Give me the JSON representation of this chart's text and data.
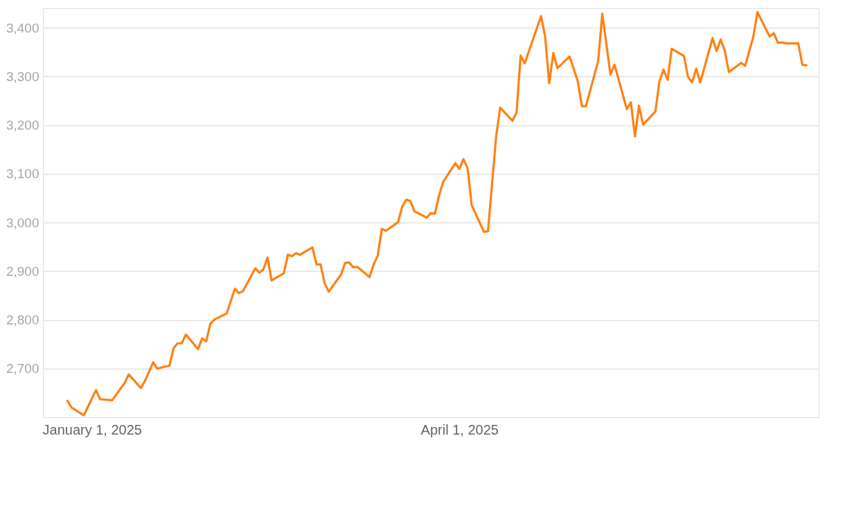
{
  "chart_data": {
    "type": "line",
    "x": [
      "2024-12-26",
      "2024-12-27",
      "2024-12-30",
      "2025-01-02",
      "2025-01-03",
      "2025-01-06",
      "2025-01-08",
      "2025-01-09",
      "2025-01-10",
      "2025-01-13",
      "2025-01-14",
      "2025-01-16",
      "2025-01-17",
      "2025-01-20",
      "2025-01-21",
      "2025-01-22",
      "2025-01-23",
      "2025-01-24",
      "2025-01-27",
      "2025-01-28",
      "2025-01-29",
      "2025-01-30",
      "2025-01-31",
      "2025-02-03",
      "2025-02-05",
      "2025-02-06",
      "2025-02-07",
      "2025-02-10",
      "2025-02-11",
      "2025-02-12",
      "2025-02-13",
      "2025-02-14",
      "2025-02-17",
      "2025-02-18",
      "2025-02-19",
      "2025-02-20",
      "2025-02-21",
      "2025-02-24",
      "2025-02-25",
      "2025-02-26",
      "2025-02-27",
      "2025-02-28",
      "2025-03-03",
      "2025-03-04",
      "2025-03-05",
      "2025-03-06",
      "2025-03-07",
      "2025-03-10",
      "2025-03-11",
      "2025-03-12",
      "2025-03-13",
      "2025-03-14",
      "2025-03-17",
      "2025-03-18",
      "2025-03-19",
      "2025-03-20",
      "2025-03-21",
      "2025-03-24",
      "2025-03-25",
      "2025-03-26",
      "2025-03-27",
      "2025-03-28",
      "2025-03-31",
      "2025-04-01",
      "2025-04-02",
      "2025-04-03",
      "2025-04-04",
      "2025-04-07",
      "2025-04-08",
      "2025-04-10",
      "2025-04-11",
      "2025-04-14",
      "2025-04-15",
      "2025-04-16",
      "2025-04-17",
      "2025-04-21",
      "2025-04-22",
      "2025-04-23",
      "2025-04-24",
      "2025-04-25",
      "2025-04-28",
      "2025-04-30",
      "2025-05-01",
      "2025-05-02",
      "2025-05-05",
      "2025-05-06",
      "2025-05-08",
      "2025-05-09",
      "2025-05-12",
      "2025-05-13",
      "2025-05-14",
      "2025-05-15",
      "2025-05-16",
      "2025-05-19",
      "2025-05-20",
      "2025-05-21",
      "2025-05-22",
      "2025-05-23",
      "2025-05-26",
      "2025-05-27",
      "2025-05-28",
      "2025-05-29",
      "2025-05-30",
      "2025-06-02",
      "2025-06-03",
      "2025-06-04",
      "2025-06-05",
      "2025-06-06",
      "2025-06-09",
      "2025-06-10",
      "2025-06-12",
      "2025-06-13",
      "2025-06-16",
      "2025-06-17",
      "2025-06-18",
      "2025-06-19",
      "2025-06-20",
      "2025-06-23",
      "2025-06-24",
      "2025-06-25"
    ],
    "series": [
      {
        "color": "#ff8112",
        "values": [
          2634,
          2620,
          2604,
          2656,
          2637,
          2635,
          2659,
          2670,
          2688,
          2660,
          2675,
          2713,
          2700,
          2706,
          2742,
          2752,
          2752,
          2770,
          2740,
          2762,
          2756,
          2792,
          2801,
          2813,
          2864,
          2855,
          2859,
          2906,
          2897,
          2904,
          2928,
          2881,
          2896,
          2934,
          2931,
          2937,
          2934,
          2949,
          2914,
          2914,
          2875,
          2858,
          2893,
          2917,
          2918,
          2908,
          2909,
          2888,
          2914,
          2932,
          2987,
          2983,
          3001,
          3033,
          3047,
          3044,
          3023,
          3010,
          3019,
          3018,
          3055,
          3083,
          3122,
          3110,
          3130,
          3112,
          3036,
          2981,
          2982,
          3177,
          3236,
          3209,
          3226,
          3343,
          3327,
          3424,
          3382,
          3286,
          3348,
          3317,
          3341,
          3290,
          3239,
          3239,
          3332,
          3429,
          3304,
          3324,
          3233,
          3247,
          3177,
          3240,
          3201,
          3228,
          3290,
          3314,
          3293,
          3357,
          3342,
          3299,
          3288,
          3316,
          3288,
          3379,
          3352,
          3376,
          3353,
          3309,
          3328,
          3322,
          3382,
          3432,
          3382,
          3389,
          3369,
          3370,
          3368,
          3368,
          3324,
          3323
        ]
      }
    ],
    "xlim": [
      "2024-12-20",
      "2025-06-28"
    ],
    "xticks": [
      {
        "value": "2025-01-01",
        "label": "January 1, 2025"
      },
      {
        "value": "2025-04-01",
        "label": "April 1, 2025"
      }
    ],
    "ylim": [
      2600,
      3440
    ],
    "yticks": [
      {
        "value": 2700,
        "label": "2,700"
      },
      {
        "value": 2800,
        "label": "2,800"
      },
      {
        "value": 2900,
        "label": "2,900"
      },
      {
        "value": 3000,
        "label": "3,000"
      },
      {
        "value": 3100,
        "label": "3,100"
      },
      {
        "value": 3200,
        "label": "3,200"
      },
      {
        "value": 3300,
        "label": "3,300"
      },
      {
        "value": 3400,
        "label": "3,400"
      }
    ],
    "grid": "y",
    "marker": "none",
    "line_style": "solid"
  }
}
